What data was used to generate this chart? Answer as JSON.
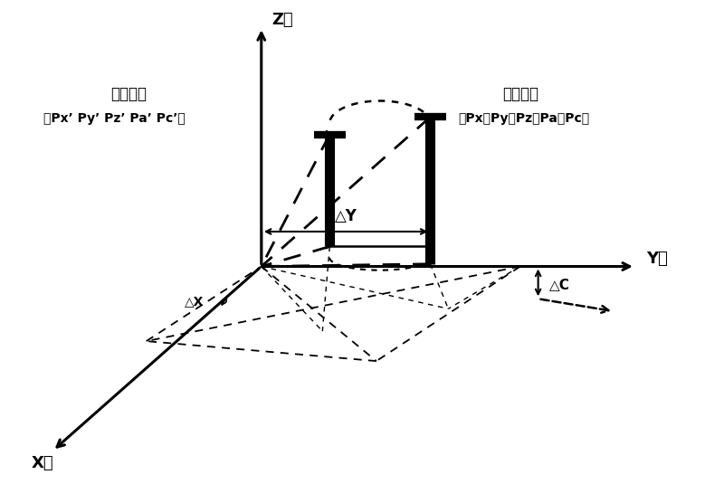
{
  "bg_color": "#ffffff",
  "fig_width": 8.0,
  "fig_height": 5.56,
  "dpi": 100,
  "label_z": "Z轴",
  "label_y": "Y轴",
  "label_x": "X轴",
  "label_start_title": "刀具起点",
  "label_start_coord": "（Px，Py，Pz，Pa，Pc）",
  "label_end_title": "刀具终点",
  "label_end_coord": "（Px’ Py’ Pz’ Pa’ Pc’）",
  "label_deltaY": "△Y",
  "label_deltaC": "△C",
  "label_deltaX": "△X"
}
